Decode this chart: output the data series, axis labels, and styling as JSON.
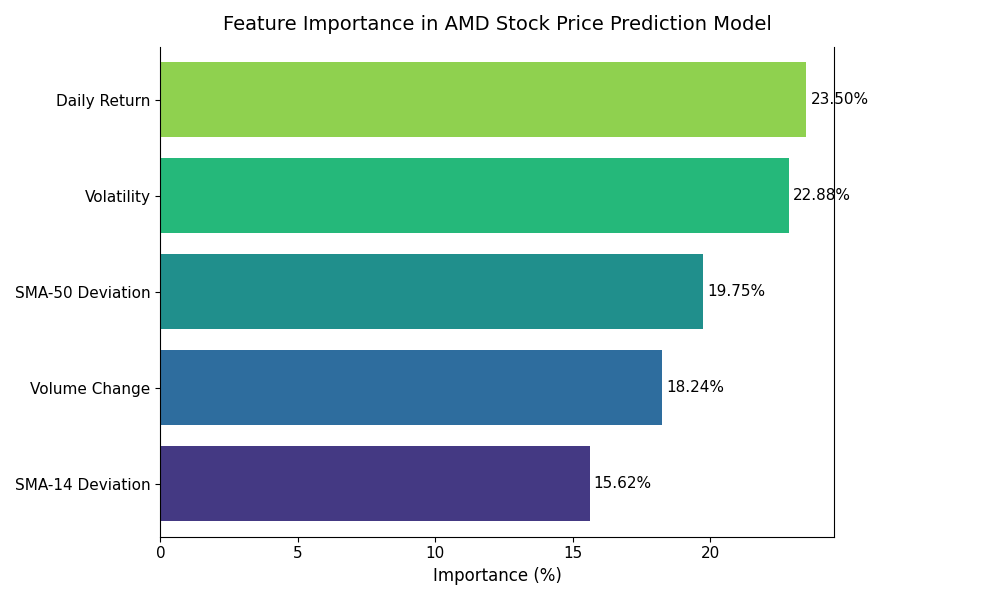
{
  "title": "Feature Importance in AMD Stock Price Prediction Model",
  "categories": [
    "SMA-14 Deviation",
    "Volume Change",
    "SMA-50 Deviation",
    "Volatility",
    "Daily Return"
  ],
  "values": [
    15.62,
    18.24,
    19.75,
    22.88,
    23.5
  ],
  "bar_colors": [
    "#443983",
    "#2e6d9e",
    "#208f8c",
    "#25b87a",
    "#8fd14f"
  ],
  "xlabel": "Importance (%)",
  "ylabel": "",
  "xlim": [
    0,
    24.5
  ],
  "figsize": [
    10,
    6
  ],
  "dpi": 100,
  "title_fontsize": 14,
  "label_fontsize": 12,
  "tick_fontsize": 11,
  "annotation_fontsize": 11,
  "bar_height": 0.78
}
